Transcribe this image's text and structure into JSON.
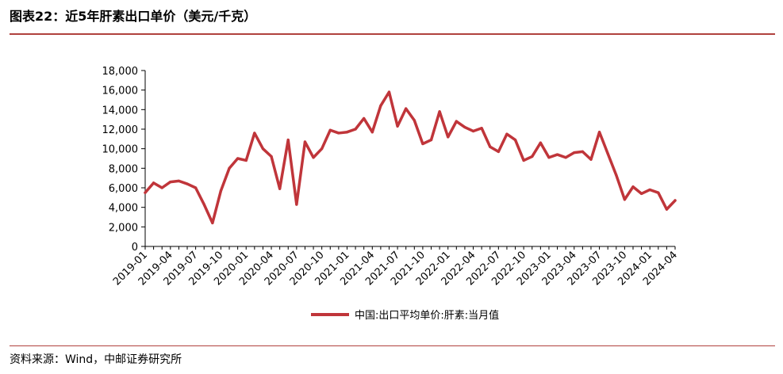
{
  "title": "图表22：近5年肝素出口单价（美元/千克）",
  "source": "资料来源：Wind，中邮证券研究所",
  "colors": {
    "line": "#c0353a",
    "rule": "#b0413e",
    "axis": "#000000"
  },
  "chart_data": {
    "type": "line",
    "title": "近5年肝素出口单价（美元/千克）",
    "xlabel": "",
    "ylabel": "",
    "ylim": [
      0,
      18000
    ],
    "yticks": [
      0,
      2000,
      4000,
      6000,
      8000,
      10000,
      12000,
      14000,
      16000,
      18000
    ],
    "ytick_labels": [
      "0",
      "2,000",
      "4,000",
      "6,000",
      "8,000",
      "10,000",
      "12,000",
      "14,000",
      "16,000",
      "18,000"
    ],
    "x": [
      "2019-01",
      "2019-02",
      "2019-03",
      "2019-04",
      "2019-05",
      "2019-06",
      "2019-07",
      "2019-08",
      "2019-09",
      "2019-10",
      "2019-11",
      "2019-12",
      "2020-01",
      "2020-02",
      "2020-03",
      "2020-04",
      "2020-05",
      "2020-06",
      "2020-07",
      "2020-08",
      "2020-09",
      "2020-10",
      "2020-11",
      "2020-12",
      "2021-01",
      "2021-02",
      "2021-03",
      "2021-04",
      "2021-05",
      "2021-06",
      "2021-07",
      "2021-08",
      "2021-09",
      "2021-10",
      "2021-11",
      "2021-12",
      "2022-01",
      "2022-02",
      "2022-03",
      "2022-04",
      "2022-05",
      "2022-06",
      "2022-07",
      "2022-08",
      "2022-09",
      "2022-10",
      "2022-11",
      "2022-12",
      "2023-01",
      "2023-02",
      "2023-03",
      "2023-04",
      "2023-05",
      "2023-06",
      "2023-07",
      "2023-08",
      "2023-09",
      "2023-10",
      "2023-11",
      "2023-12",
      "2024-01",
      "2024-02",
      "2024-03",
      "2024-04"
    ],
    "x_tick_labels": [
      "2019-01",
      "2019-04",
      "2019-07",
      "2019-10",
      "2020-01",
      "2020-04",
      "2020-07",
      "2020-10",
      "2021-01",
      "2021-04",
      "2021-07",
      "2021-10",
      "2022-01",
      "2022-04",
      "2022-07",
      "2022-10",
      "2023-01",
      "2023-04",
      "2023-07",
      "2023-10",
      "2024-01",
      "2024-04"
    ],
    "series": [
      {
        "name": "中国:出口平均单价:肝素:当月值",
        "values": [
          5500,
          6500,
          6000,
          6600,
          6700,
          6400,
          6000,
          4300,
          2400,
          5700,
          8000,
          9000,
          8800,
          11600,
          10000,
          9200,
          5900,
          10900,
          4300,
          10700,
          9100,
          10000,
          11900,
          11600,
          11700,
          12000,
          13100,
          11700,
          14400,
          15800,
          12300,
          14100,
          12900,
          10500,
          10900,
          13800,
          11200,
          12800,
          12200,
          11800,
          12100,
          10200,
          9700,
          11500,
          10900,
          8800,
          9200,
          10600,
          9100,
          9400,
          9100,
          9600,
          9700,
          8900,
          11700,
          9500,
          7300,
          4800,
          6100,
          5400,
          5800,
          5500,
          3800,
          4700
        ]
      }
    ],
    "legend_position": "bottom-center",
    "grid": false
  }
}
